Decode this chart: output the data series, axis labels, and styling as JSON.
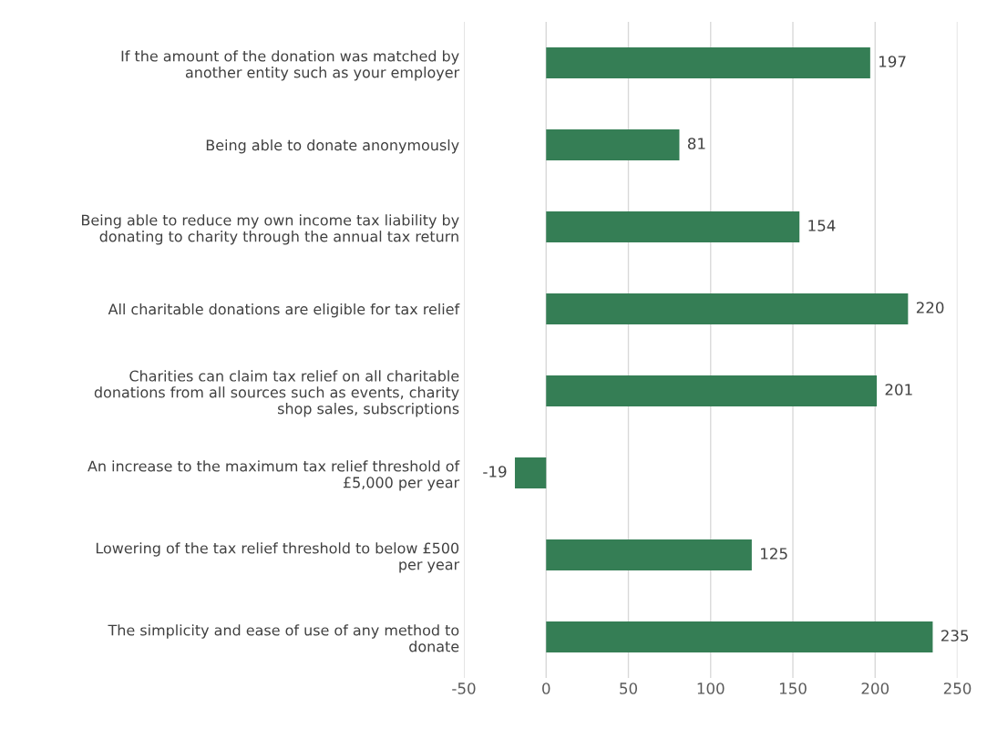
{
  "chart_data": {
    "type": "bar",
    "orientation": "horizontal",
    "categories": [
      "If the amount of the donation was matched by\nanother entity such as your employer",
      "Being able to donate anonymously",
      "Being able to reduce my own income tax liability by\ndonating to charity through the annual tax return",
      "All charitable donations are eligible for tax relief",
      "Charities can claim tax relief on all charitable\ndonations from all sources such as events, charity\nshop sales, subscriptions",
      "An increase to the maximum tax relief threshold of\n£5,000 per year",
      "Lowering of the tax relief threshold to below £500\nper year",
      "The simplicity and ease of use of any method to\ndonate"
    ],
    "values": [
      197,
      81,
      154,
      220,
      201,
      -19,
      125,
      235
    ],
    "color": "#357e55",
    "xlim": [
      -50,
      250
    ],
    "xticks": [
      -50,
      0,
      50,
      100,
      150,
      200,
      250
    ],
    "grid": "x",
    "data_labels": true
  }
}
